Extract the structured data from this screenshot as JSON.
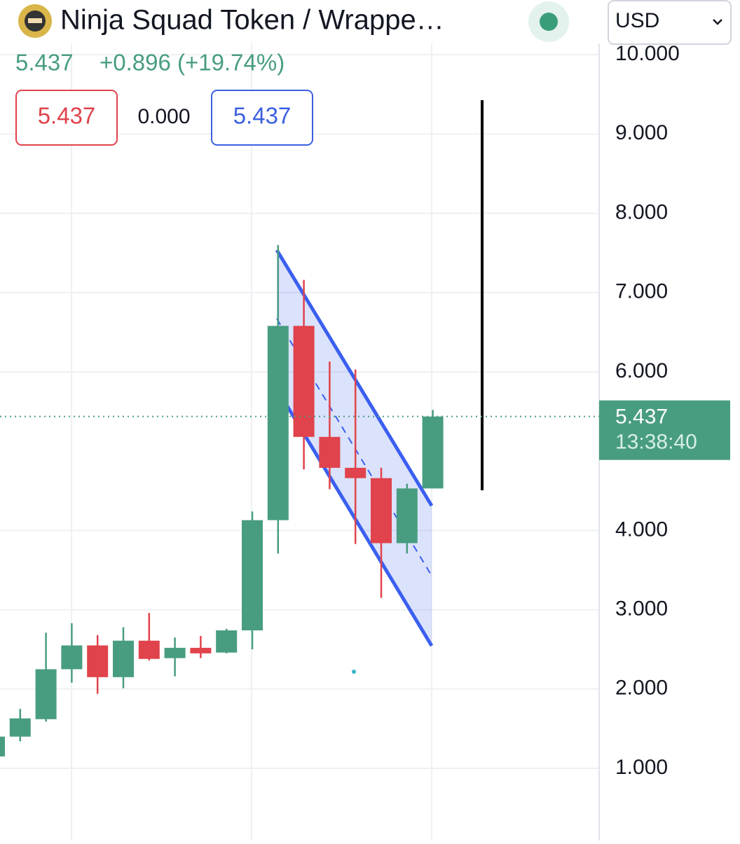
{
  "header": {
    "title": "Ninja Squad Token / Wrappe…",
    "price": "5.437",
    "change": "+0.896 (+19.74%)",
    "boxes": [
      "5.437",
      "0.000",
      "5.437"
    ],
    "currency": "USD"
  },
  "chart_data": {
    "type": "candlestick",
    "categories": [
      null,
      null,
      null,
      null,
      null,
      null,
      null,
      null,
      null,
      null,
      null,
      null,
      null,
      null,
      null,
      null,
      null,
      null
    ],
    "open": [
      1.15,
      1.4,
      1.62,
      2.25,
      2.55,
      2.15,
      2.61,
      2.39,
      2.52,
      2.46,
      2.74,
      4.13,
      6.58,
      5.18,
      4.79,
      4.66,
      3.84,
      4.53
    ],
    "high": [
      1.4,
      1.75,
      2.71,
      2.83,
      2.68,
      2.78,
      2.96,
      2.65,
      2.67,
      2.76,
      4.24,
      7.6,
      7.16,
      6.13,
      6.03,
      4.79,
      4.59,
      5.52
    ],
    "low": [
      1.15,
      1.34,
      1.59,
      2.08,
      1.94,
      2.01,
      2.36,
      2.16,
      2.39,
      2.45,
      2.5,
      3.71,
      4.77,
      4.52,
      3.83,
      3.15,
      3.71,
      4.53
    ],
    "close": [
      1.4,
      1.63,
      2.25,
      2.55,
      2.15,
      2.61,
      2.38,
      2.52,
      2.45,
      2.74,
      4.13,
      6.58,
      5.18,
      4.79,
      4.66,
      3.84,
      4.53,
      5.437
    ],
    "up_color": "#489d80",
    "down_color": "#e0434b",
    "ylim": [
      0.09,
      10.69
    ],
    "yticks": [
      {
        "value": 1,
        "label": "1.000"
      },
      {
        "value": 2,
        "label": "2.000"
      },
      {
        "value": 3,
        "label": "3.000"
      },
      {
        "value": 4,
        "label": "4.000"
      },
      {
        "value": 6,
        "label": "6.000"
      },
      {
        "value": 7,
        "label": "7.000"
      },
      {
        "value": 8,
        "label": "8.000"
      },
      {
        "value": 9,
        "label": "9.000"
      },
      {
        "value": 10,
        "label": "10.000"
      }
    ],
    "grid": true,
    "last_price": 5.437,
    "countdown": "13:38:40"
  }
}
